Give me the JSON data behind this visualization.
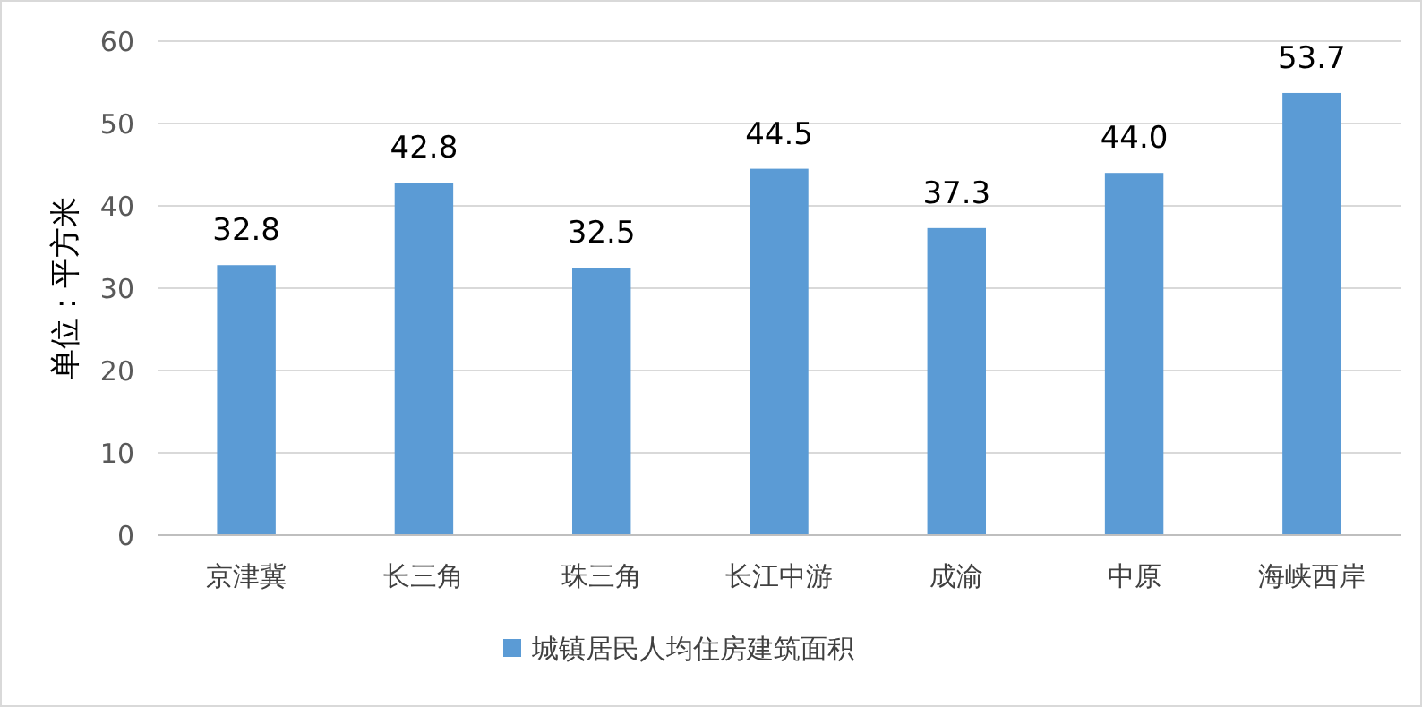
{
  "chart_data": {
    "type": "bar",
    "ylabel": "单位：平方米",
    "categories": [
      "京津冀",
      "长三角",
      "珠三角",
      "长江中游",
      "成渝",
      "中原",
      "海峡西岸"
    ],
    "series": [
      {
        "name": "城镇居民人均住房建筑面积",
        "color": "#5b9bd5",
        "values": [
          32.8,
          42.8,
          32.5,
          44.5,
          37.3,
          44.0,
          53.7
        ]
      }
    ],
    "value_labels": [
      "32.8",
      "42.8",
      "32.5",
      "44.5",
      "37.3",
      "44.0",
      "53.7"
    ],
    "ylim": [
      0,
      60
    ],
    "yticks": [
      0,
      10,
      20,
      30,
      40,
      50,
      60
    ],
    "grid": "y",
    "legend": "bottom"
  }
}
